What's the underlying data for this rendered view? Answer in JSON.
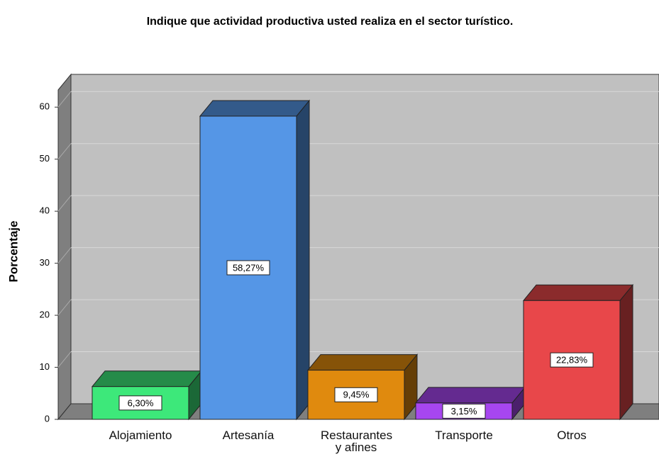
{
  "chart_data": {
    "type": "bar3d",
    "title": "Indique que actividad productiva usted realiza en el sector turístico.",
    "y_label": "Porcentaje",
    "categories": [
      "Alojamiento",
      "Artesanía",
      "Restaurantes y afines",
      "Transporte",
      "Otros"
    ],
    "values": [
      6.3,
      58.27,
      9.45,
      3.15,
      22.83
    ],
    "value_labels": [
      "6,30%",
      "58,27%",
      "9,45%",
      "3,15%",
      "22,83%"
    ],
    "colors": [
      "#3de87a",
      "#5596e6",
      "#e08a0e",
      "#a746f0",
      "#e8474a"
    ],
    "ylim": [
      0,
      63.3
    ],
    "yticks": [
      0,
      10,
      20,
      30,
      40,
      50,
      60
    ],
    "grid": true
  }
}
